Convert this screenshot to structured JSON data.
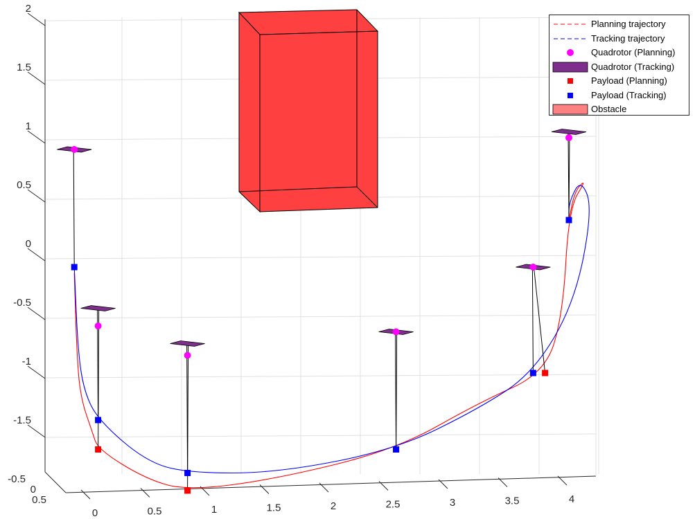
{
  "chart_data": {
    "type": "3d-line",
    "title": "",
    "xlabel": "",
    "ylabel": "",
    "zlabel": "",
    "x_ticks": [
      "0",
      "0.5",
      "1",
      "1.5",
      "2",
      "2.5",
      "3",
      "3.5",
      "4"
    ],
    "y_ticks": [
      "-0.5",
      "0",
      "0.5"
    ],
    "z_ticks": [
      "-1.5",
      "-1",
      "-0.5",
      "0",
      "0.5",
      "1",
      "1.5",
      "2"
    ],
    "grid": true,
    "legend_position": "top-right",
    "legend": [
      {
        "label": "Planning trajectory",
        "symbol": "dashed-line",
        "color": "#ff0000"
      },
      {
        "label": "Tracking trajectory",
        "symbol": "dashed-line",
        "color": "#0000ff"
      },
      {
        "label": "Quadrotor (Planning)",
        "symbol": "circle",
        "color": "#ff00ff"
      },
      {
        "label": "Quadrotor (Tracking)",
        "symbol": "patch",
        "color": "#7e2f8e"
      },
      {
        "label": "Payload (Planning)",
        "symbol": "square",
        "color": "#ff0000"
      },
      {
        "label": "Payload (Tracking)",
        "symbol": "square",
        "color": "#0000ff"
      },
      {
        "label": "Obstacle",
        "symbol": "patch",
        "color": "#ff8080"
      }
    ],
    "obstacle": {
      "x_range": [
        1.2,
        2.2
      ],
      "z_range": [
        0.4,
        2.0
      ],
      "color": "#ff4040"
    },
    "snapshots": [
      {
        "quad_planning": [
          -0.2,
          0.8
        ],
        "quad_tracking": [
          -0.2,
          0.8
        ],
        "payload_planning": null,
        "payload_tracking": [
          -0.2,
          -0.2
        ]
      },
      {
        "quad_planning": [
          0.0,
          -0.7
        ],
        "quad_tracking": [
          0.0,
          -0.55
        ],
        "payload_planning": [
          0.0,
          -1.75
        ],
        "payload_tracking": [
          0.0,
          -1.5
        ]
      },
      {
        "quad_planning": [
          0.75,
          -0.95
        ],
        "quad_tracking": [
          0.75,
          -0.85
        ],
        "payload_planning": [
          0.75,
          -2.1
        ],
        "payload_tracking": [
          0.75,
          -1.95
        ]
      },
      {
        "quad_planning": [
          2.5,
          -0.75
        ],
        "quad_tracking": [
          2.5,
          -0.75
        ],
        "payload_planning": [
          2.5,
          -1.75
        ],
        "payload_tracking": [
          2.5,
          -1.75
        ]
      },
      {
        "quad_planning": [
          3.65,
          -0.2
        ],
        "quad_tracking": [
          3.65,
          -0.2
        ],
        "payload_planning": [
          3.75,
          -1.1
        ],
        "payload_tracking": [
          3.65,
          -1.1
        ]
      },
      {
        "quad_planning": [
          3.95,
          0.9
        ],
        "quad_tracking": [
          3.95,
          0.95
        ],
        "payload_planning": [
          3.95,
          0.2
        ],
        "payload_tracking": [
          3.95,
          0.2
        ]
      }
    ],
    "series": [
      {
        "name": "Planning trajectory",
        "color": "#ff0000",
        "points": [
          [
            -0.2,
            -0.25
          ],
          [
            -0.18,
            -0.9
          ],
          [
            -0.15,
            -1.3
          ],
          [
            -0.05,
            -1.6
          ],
          [
            0.0,
            -1.75
          ],
          [
            0.4,
            -2.0
          ],
          [
            0.75,
            -2.1
          ],
          [
            1.5,
            -2.0
          ],
          [
            2.5,
            -1.75
          ],
          [
            3.2,
            -1.35
          ],
          [
            3.75,
            -1.1
          ],
          [
            3.9,
            -0.6
          ],
          [
            3.95,
            0.3
          ],
          [
            4.1,
            0.55
          ],
          [
            4.0,
            0.45
          ],
          [
            3.95,
            0.2
          ]
        ]
      },
      {
        "name": "Tracking trajectory",
        "color": "#0000ff",
        "points": [
          [
            -0.2,
            -0.2
          ],
          [
            -0.17,
            -0.9
          ],
          [
            -0.12,
            -1.25
          ],
          [
            0.0,
            -1.5
          ],
          [
            0.4,
            -1.85
          ],
          [
            0.75,
            -1.95
          ],
          [
            1.5,
            -1.95
          ],
          [
            2.5,
            -1.75
          ],
          [
            3.2,
            -1.4
          ],
          [
            3.65,
            -1.1
          ],
          [
            4.0,
            -0.5
          ],
          [
            4.15,
            0.3
          ],
          [
            4.05,
            0.55
          ],
          [
            3.95,
            0.35
          ],
          [
            3.95,
            0.2
          ]
        ]
      }
    ]
  }
}
